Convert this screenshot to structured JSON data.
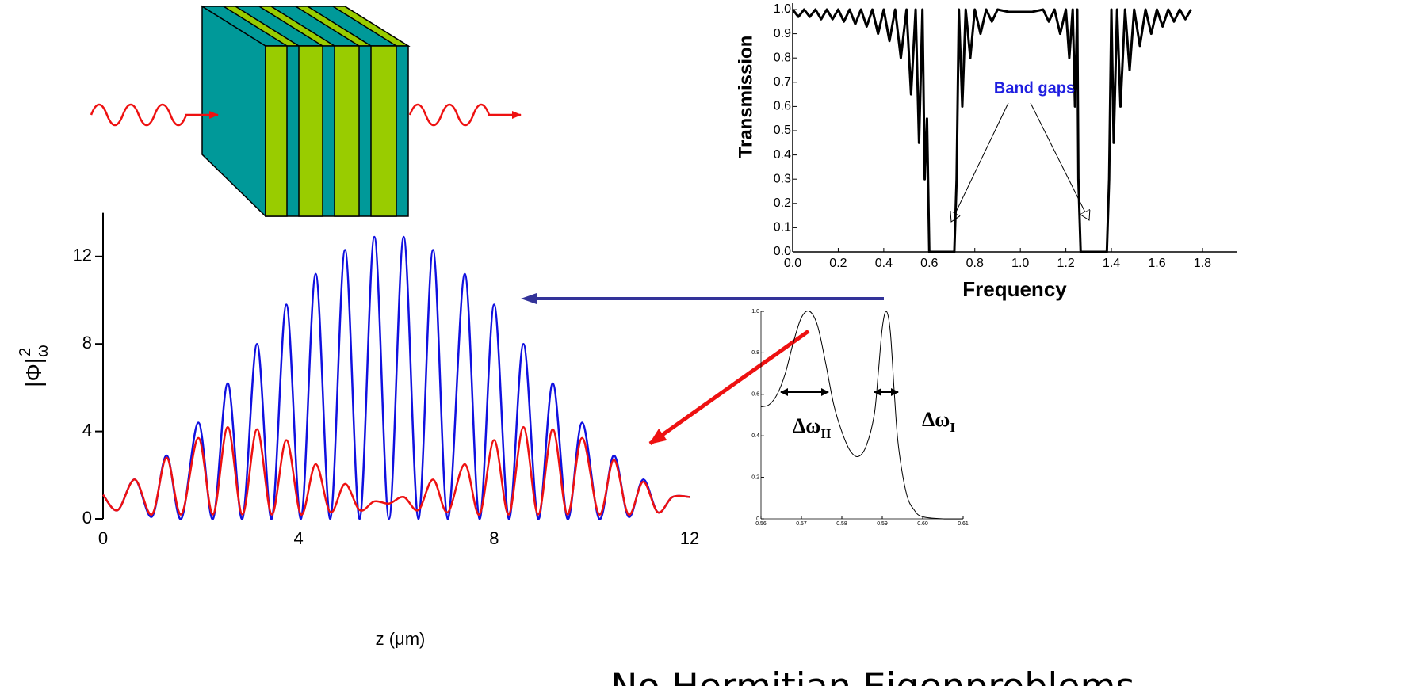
{
  "heading": "No Hermitian Eigenproblems",
  "chart_data": [
    {
      "type": "line",
      "xlabel": "Frequency",
      "ylabel": "Transmission",
      "color": "#000000",
      "xlim": [
        0,
        1.95
      ],
      "ylim": [
        0,
        1.0
      ],
      "xticks": [
        {
          "value": 0,
          "label": "0.0"
        },
        0.2,
        0.4,
        0.6,
        0.8,
        {
          "value": 1,
          "label": "1.0"
        },
        1.2,
        1.4,
        1.6,
        1.8
      ],
      "yticks": [
        {
          "value": 0,
          "label": "0.0"
        },
        0.1,
        0.2,
        0.3,
        0.4,
        0.5,
        0.6,
        0.7,
        0.8,
        0.9,
        {
          "value": 1,
          "label": "1.0"
        }
      ],
      "x": [
        0,
        0.025,
        0.05,
        0.075,
        0.1,
        0.125,
        0.15,
        0.175,
        0.2,
        0.225,
        0.25,
        0.275,
        0.3,
        0.325,
        0.35,
        0.375,
        0.4,
        0.425,
        0.45,
        0.475,
        0.5,
        0.52,
        0.54,
        0.555,
        0.57,
        0.58,
        0.59,
        0.6,
        0.71,
        0.72,
        0.73,
        0.745,
        0.76,
        0.78,
        0.8,
        0.825,
        0.85,
        0.875,
        0.9,
        0.95,
        1.0,
        1.05,
        1.1,
        1.125,
        1.15,
        1.175,
        1.2,
        1.215,
        1.23,
        1.24,
        1.25,
        1.255,
        1.265,
        1.38,
        1.39,
        1.4,
        1.41,
        1.425,
        1.44,
        1.46,
        1.48,
        1.5,
        1.525,
        1.55,
        1.575,
        1.6,
        1.625,
        1.65,
        1.675,
        1.7,
        1.725,
        1.75
      ],
      "values": [
        1.0,
        0.97,
        1.0,
        0.97,
        1.0,
        0.96,
        1.0,
        0.96,
        1.0,
        0.95,
        1.0,
        0.94,
        1.0,
        0.93,
        1.0,
        0.9,
        1.0,
        0.87,
        1.0,
        0.8,
        1.0,
        0.65,
        1.0,
        0.45,
        1.0,
        0.3,
        0.55,
        0,
        0,
        0.3,
        1.0,
        0.6,
        1.0,
        0.8,
        1.0,
        0.9,
        1.0,
        0.95,
        1.0,
        0.99,
        0.99,
        0.99,
        1.0,
        0.95,
        1.0,
        0.9,
        1.0,
        0.8,
        1.0,
        0.6,
        1.0,
        0.3,
        0,
        0,
        0.3,
        1.0,
        0.45,
        1.0,
        0.6,
        1.0,
        0.75,
        1.0,
        0.85,
        1.0,
        0.9,
        1.0,
        0.93,
        1.0,
        0.95,
        1.0,
        0.96,
        1.0
      ],
      "annotation": {
        "text": "Band gaps",
        "color": "#1f1fe0"
      }
    },
    {
      "type": "line",
      "xlabel": "z (μm)",
      "ylabel": {
        "text": "|Φ|",
        "sup": "2",
        "sub": "ω"
      },
      "xlim": [
        0,
        12
      ],
      "ylim": [
        0,
        14
      ],
      "xticks": [
        0,
        4,
        8,
        12
      ],
      "yticks": [
        0,
        4,
        8,
        12
      ],
      "x": [
        0,
        0.3,
        0.65,
        1.0,
        1.3,
        1.6,
        1.95,
        2.25,
        2.55,
        2.85,
        3.15,
        3.45,
        3.75,
        4.05,
        4.35,
        4.65,
        4.95,
        5.25,
        5.55,
        5.85,
        6.15,
        6.45,
        6.75,
        7.05,
        7.4,
        7.7,
        8.0,
        8.3,
        8.6,
        8.9,
        9.2,
        9.5,
        9.8,
        10.15,
        10.45,
        10.75,
        11.05,
        11.35,
        11.65,
        12
      ],
      "series": [
        {
          "color": "#1010e0",
          "values": [
            1.1,
            0.4,
            1.8,
            0.1,
            2.9,
            0,
            4.4,
            0,
            6.2,
            0,
            8.0,
            0,
            9.8,
            0,
            11.2,
            0,
            12.3,
            0,
            12.9,
            0,
            12.9,
            0,
            12.3,
            0,
            11.2,
            0,
            9.8,
            0,
            8.0,
            0,
            6.2,
            0,
            4.4,
            0,
            2.9,
            0.1,
            1.8,
            0.3,
            1.0,
            1.0
          ]
        },
        {
          "color": "#ee1111",
          "values": [
            1.1,
            0.4,
            1.8,
            0.2,
            2.8,
            0.2,
            3.7,
            0.2,
            4.2,
            0.2,
            4.1,
            0.2,
            3.6,
            0.2,
            2.5,
            0.3,
            1.6,
            0.4,
            0.8,
            0.7,
            1.0,
            0.4,
            1.8,
            0.3,
            2.5,
            0.2,
            3.6,
            0.2,
            4.2,
            0.2,
            4.1,
            0.2,
            3.7,
            0.2,
            2.7,
            0.2,
            1.7,
            0.3,
            1.0,
            1.0
          ]
        }
      ]
    },
    {
      "type": "line",
      "color": "#000000",
      "xlim": [
        0.56,
        0.61
      ],
      "ylim": [
        0,
        1.0
      ],
      "xticks": [
        0.56,
        0.57,
        0.58,
        0.59,
        {
          "value": 0.6,
          "label": "0.60"
        },
        0.61
      ],
      "yticks": [
        0,
        0.2,
        0.4,
        0.6,
        0.8,
        {
          "value": 1,
          "label": "1.0"
        }
      ],
      "x": [
        0.56,
        0.562,
        0.564,
        0.566,
        0.568,
        0.57,
        0.572,
        0.574,
        0.576,
        0.578,
        0.58,
        0.582,
        0.584,
        0.586,
        0.588,
        0.589,
        0.59,
        0.591,
        0.592,
        0.593,
        0.594,
        0.596,
        0.598,
        0.6,
        0.605,
        0.61
      ],
      "values": [
        0.54,
        0.55,
        0.6,
        0.7,
        0.85,
        0.97,
        1.0,
        0.93,
        0.75,
        0.55,
        0.42,
        0.33,
        0.3,
        0.35,
        0.5,
        0.7,
        0.92,
        1.0,
        0.9,
        0.6,
        0.35,
        0.12,
        0.04,
        0.01,
        0,
        0
      ],
      "annotations": [
        {
          "text": "Δω",
          "sub": "II"
        },
        {
          "text": "Δω",
          "sub": "I"
        }
      ]
    }
  ]
}
